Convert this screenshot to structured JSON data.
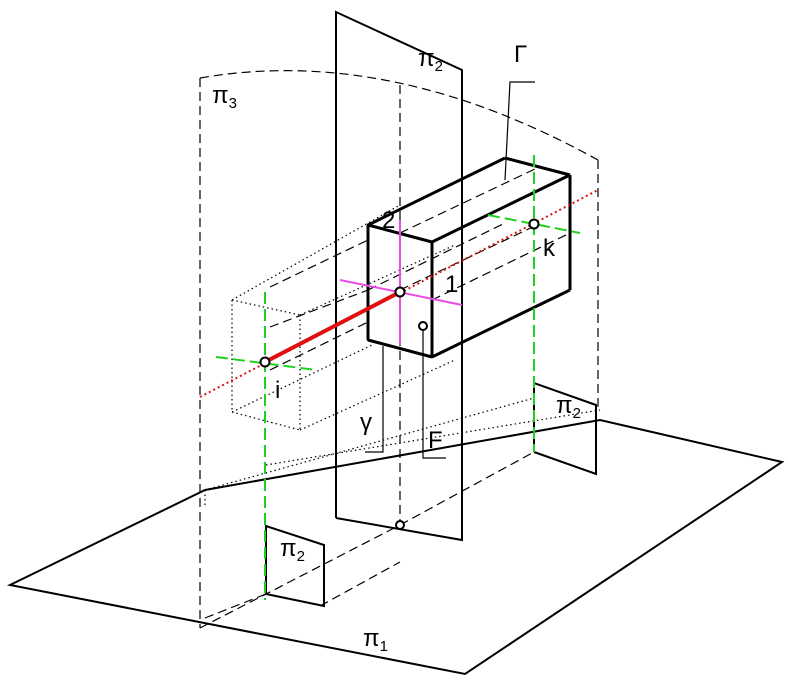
{
  "labels": {
    "pi2_top": {
      "main": "π",
      "sub": "2"
    },
    "pi3": {
      "main": "π",
      "sub": "3"
    },
    "gamma_upper": "Γ",
    "k": "k",
    "pt2": "2",
    "pt1": "1",
    "i": "i",
    "gamma_lower": "γ",
    "F": "F",
    "pi2_right": {
      "main": "π",
      "sub": "2"
    },
    "pi2_left": {
      "main": "π",
      "sub": "2"
    },
    "pi1": {
      "main": "π",
      "sub": "1"
    }
  },
  "colors": {
    "line": "#000000",
    "axis_red": "#e01010",
    "projection_green": "#1fd11f",
    "cross_magenta": "#e84de8"
  }
}
